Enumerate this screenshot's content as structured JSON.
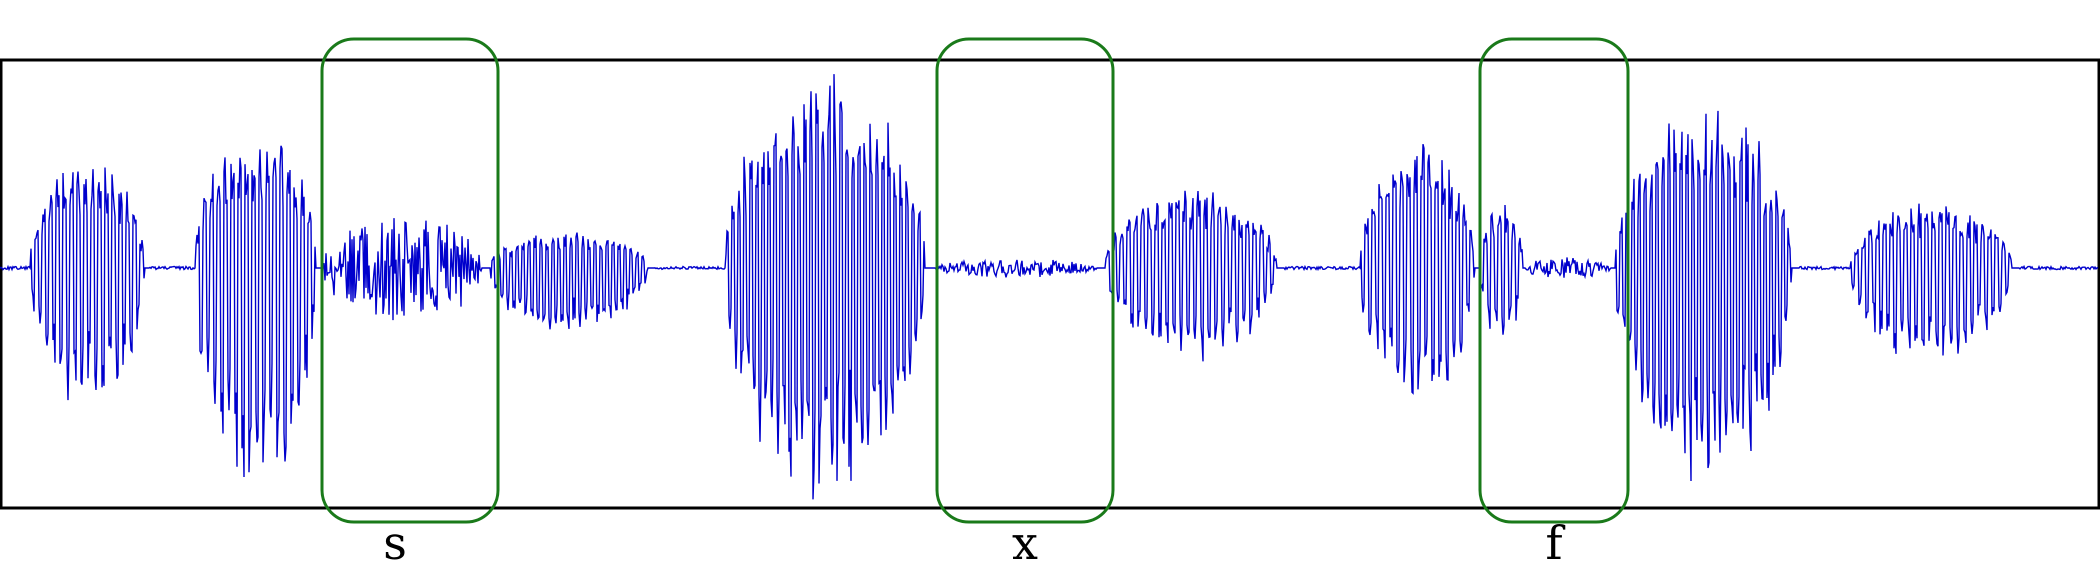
{
  "colors": {
    "waveform": "#0000cc",
    "highlight": "#1a7a1a",
    "frame": "#000000",
    "background": "#ffffff"
  },
  "segments": [
    {
      "label": "s"
    },
    {
      "label": "x"
    },
    {
      "label": "f"
    }
  ]
}
